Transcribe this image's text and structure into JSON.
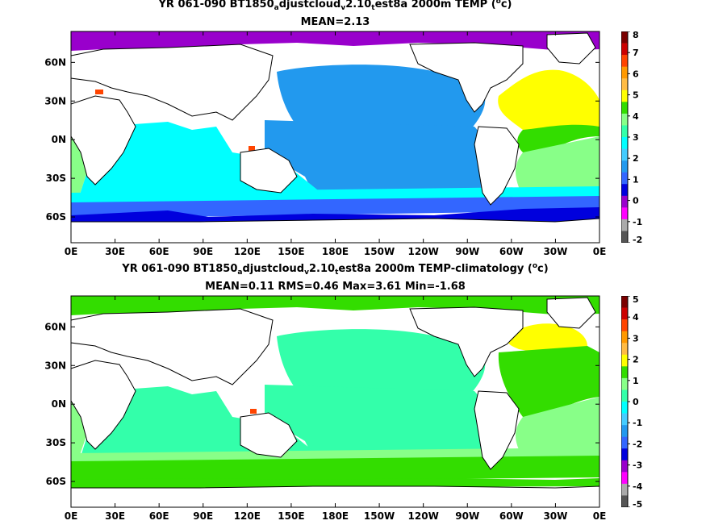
{
  "chart_data": [
    {
      "type": "heatmap",
      "title_parts": [
        "YR 061-090 BT1850",
        "a",
        "djustcloud",
        "v",
        "2.10",
        "t",
        "est8a 2000m TEMP (",
        "o",
        "c)"
      ],
      "stats": "MEAN=2.13",
      "x_ticks": [
        "0E",
        "30E",
        "60E",
        "90E",
        "120E",
        "150E",
        "180E",
        "150W",
        "120W",
        "90W",
        "60W",
        "30W",
        "0E"
      ],
      "y_ticks": [
        "60N",
        "30N",
        "0N",
        "30S",
        "60S"
      ],
      "colorbar": {
        "labels": [
          "8",
          "7",
          "6",
          "5",
          "4",
          "3",
          "2",
          "1",
          "0",
          "-1",
          "-2"
        ],
        "colors": [
          "#7a0000",
          "#cc0000",
          "#ff4400",
          "#ff9900",
          "#ffbb44",
          "#ffff00",
          "#33dd00",
          "#88ff88",
          "#33ffaa",
          "#00ffff",
          "#44ccff",
          "#2299ee",
          "#3366ff",
          "#0000dd",
          "#9900cc",
          "#ff00ff",
          "#aaaaaa",
          "#555555"
        ]
      },
      "regions": {
        "arctic": "#9900cc",
        "pacific_north": "#2299ee",
        "pacific_central": "#2299ee",
        "indian": "#00ffff",
        "atlantic_north": "#ffff00",
        "atlantic_subtropic": "#33dd00",
        "atlantic_south": "#88ff88",
        "southern_band": "#00ffff",
        "southern_ocean": "#3366ff",
        "antarctic_shelf": "#0000dd",
        "hotspot": "#ff4400"
      }
    },
    {
      "type": "heatmap",
      "title_parts": [
        "YR 061-090 BT1850",
        "a",
        "djustcloud",
        "v",
        "2.10",
        "t",
        "est8a 2000m TEMP-climatology (",
        "o",
        "c)"
      ],
      "stats": "MEAN=0.11   RMS=0.46   Max=3.61   Min=-1.68",
      "x_ticks": [
        "0E",
        "30E",
        "60E",
        "90E",
        "120E",
        "150E",
        "180E",
        "150W",
        "120W",
        "90W",
        "60W",
        "30W",
        "0E"
      ],
      "y_ticks": [
        "60N",
        "30N",
        "0N",
        "30S",
        "60S"
      ],
      "colorbar": {
        "labels": [
          "5",
          "4",
          "3",
          "2",
          "1",
          "0",
          "-1",
          "-2",
          "-3",
          "-4",
          "-5"
        ],
        "colors": [
          "#7a0000",
          "#cc0000",
          "#ff4400",
          "#ff9900",
          "#ffbb44",
          "#ffff00",
          "#33dd00",
          "#88ff88",
          "#33ffaa",
          "#00ffff",
          "#44ccff",
          "#2299ee",
          "#3366ff",
          "#0000dd",
          "#9900cc",
          "#ff00ff",
          "#aaaaaa",
          "#555555"
        ]
      },
      "regions": {
        "arctic": "#33dd00",
        "pacific_north": "#33ffaa",
        "pacific_central": "#33ffaa",
        "indian": "#33ffaa",
        "atlantic_north": "#ffff00",
        "atlantic_subtropic": "#33dd00",
        "atlantic_south": "#88ff88",
        "southern_band": "#88ff88",
        "southern_ocean": "#33dd00",
        "antarctic_shelf": "#33dd00",
        "hotspot": "#ff4400"
      }
    }
  ]
}
